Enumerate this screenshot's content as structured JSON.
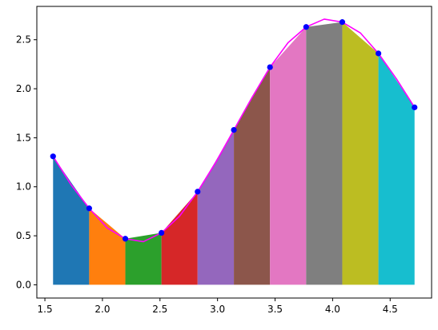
{
  "chart_data": {
    "type": "area",
    "title": "",
    "xlabel": "",
    "ylabel": "",
    "xlim": [
      1.43,
      4.86
    ],
    "ylim": [
      -0.135,
      2.84
    ],
    "grid": false,
    "x_ticks": [
      1.5,
      2.0,
      2.5,
      3.0,
      3.5,
      4.0,
      4.5
    ],
    "x_tick_labels": [
      "1.5",
      "2.0",
      "2.5",
      "3.0",
      "3.5",
      "4.0",
      "4.5"
    ],
    "y_ticks": [
      0.0,
      0.5,
      1.0,
      1.5,
      2.0,
      2.5
    ],
    "y_tick_labels": [
      "0.0",
      "0.5",
      "1.0",
      "1.5",
      "2.0",
      "2.5"
    ],
    "points": {
      "x": [
        1.571,
        1.885,
        2.199,
        2.513,
        2.827,
        3.142,
        3.456,
        3.77,
        4.084,
        4.398,
        4.712
      ],
      "y": [
        1.31,
        0.78,
        0.47,
        0.53,
        0.95,
        1.58,
        2.22,
        2.63,
        2.68,
        2.36,
        1.81
      ],
      "color": "#0000ff"
    },
    "curve": {
      "color": "#ff00ff",
      "x": [
        1.571,
        1.728,
        1.885,
        2.042,
        2.199,
        2.356,
        2.513,
        2.67,
        2.827,
        2.985,
        3.142,
        3.299,
        3.456,
        3.613,
        3.77,
        3.927,
        4.084,
        4.241,
        4.398,
        4.555,
        4.712
      ],
      "y": [
        1.31,
        1.02,
        0.78,
        0.58,
        0.47,
        0.44,
        0.53,
        0.7,
        0.95,
        1.25,
        1.58,
        1.91,
        2.22,
        2.47,
        2.63,
        2.71,
        2.68,
        2.57,
        2.36,
        2.1,
        1.81
      ]
    },
    "segment_colors": [
      "#1f77b4",
      "#ff7f0e",
      "#2ca02c",
      "#d62728",
      "#9467bd",
      "#8c564b",
      "#e377c2",
      "#7f7f7f",
      "#bcbd22",
      "#17becf"
    ]
  }
}
